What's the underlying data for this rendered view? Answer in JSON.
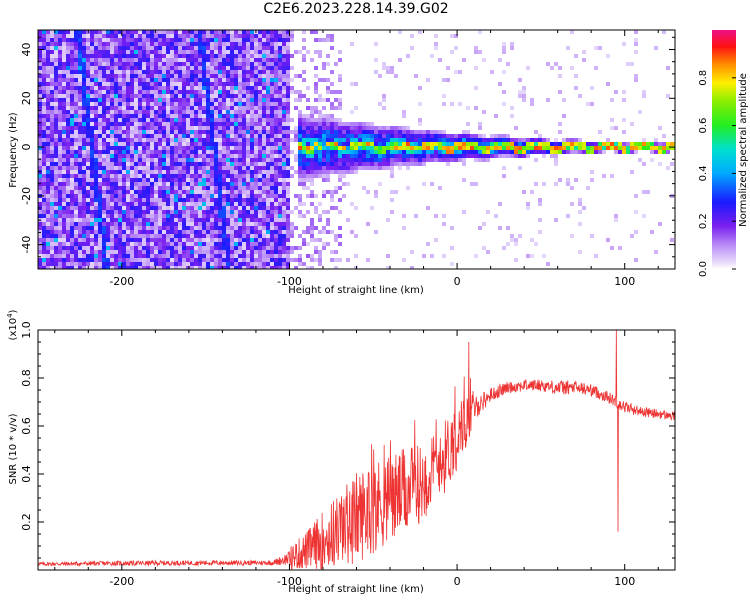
{
  "figure": {
    "title": "C2E6.2023.228.14.39.G02"
  },
  "chart_data": [
    {
      "type": "heatmap",
      "xlabel": "Height of straight line (km)",
      "ylabel": "Frequency (Hz)",
      "xlim": [
        -250,
        130
      ],
      "ylim": [
        -50,
        48
      ],
      "x_ticks": [
        -200,
        -100,
        0,
        100
      ],
      "y_ticks": [
        -40,
        -20,
        0,
        20,
        40
      ],
      "colorbar": {
        "label": "Normalized spectral amplitude",
        "range": [
          0,
          1
        ],
        "ticks": [
          "0.0",
          "0.2",
          "0.4",
          "0.6",
          "0.8"
        ],
        "colormap": "rainbow (white-violet-blue-cyan-green-yellow-red-magenta)"
      },
      "features": [
        {
          "desc": "broadband noise",
          "x_range": [
            -250,
            -100
          ],
          "y_range": [
            -50,
            48
          ],
          "level": 0.15
        },
        {
          "desc": "diagonal streaks",
          "x": [
            -218,
            -145
          ],
          "level": 0.25
        },
        {
          "desc": "transition zone",
          "x_range": [
            -100,
            -70
          ],
          "level": 0.2
        },
        {
          "desc": "narrow line centered near 0 Hz",
          "x_range": [
            -95,
            130
          ],
          "peak_level": 0.9
        }
      ],
      "grid": false
    },
    {
      "type": "line",
      "xlabel": "Height of straight line (km)",
      "ylabel": "SNR (10 * v/v)",
      "y_multiplier": "(x10^4)",
      "xlim": [
        -250,
        130
      ],
      "ylim": [
        0,
        1.0
      ],
      "x_ticks": [
        -200,
        -100,
        0,
        100
      ],
      "y_ticks": [
        0.2,
        0.4,
        0.6,
        0.8,
        1.0
      ],
      "color": "#ee3333",
      "x": [
        -250,
        -200,
        -150,
        -110,
        -100,
        -90,
        -80,
        -70,
        -60,
        -50,
        -40,
        -30,
        -20,
        -10,
        0,
        10,
        20,
        30,
        40,
        50,
        60,
        70,
        80,
        90,
        100,
        110,
        120,
        130
      ],
      "y": [
        0.025,
        0.028,
        0.03,
        0.03,
        0.05,
        0.08,
        0.12,
        0.17,
        0.22,
        0.26,
        0.3,
        0.33,
        0.37,
        0.44,
        0.56,
        0.67,
        0.73,
        0.76,
        0.77,
        0.77,
        0.76,
        0.76,
        0.75,
        0.72,
        0.68,
        0.66,
        0.65,
        0.64
      ],
      "noise": [
        0.008,
        0.01,
        0.01,
        0.01,
        0.03,
        0.05,
        0.08,
        0.1,
        0.12,
        0.12,
        0.12,
        0.11,
        0.1,
        0.1,
        0.09,
        0.05,
        0.03,
        0.025,
        0.025,
        0.025,
        0.03,
        0.03,
        0.025,
        0.025,
        0.025,
        0.02,
        0.02,
        0.02
      ],
      "spikes": [
        {
          "x": 7,
          "y": 0.95
        },
        {
          "x": 95,
          "y": 1.0
        },
        {
          "x": 96,
          "y": 0.16
        },
        {
          "x": -10,
          "y": 0.55
        }
      ],
      "grid": false
    }
  ]
}
